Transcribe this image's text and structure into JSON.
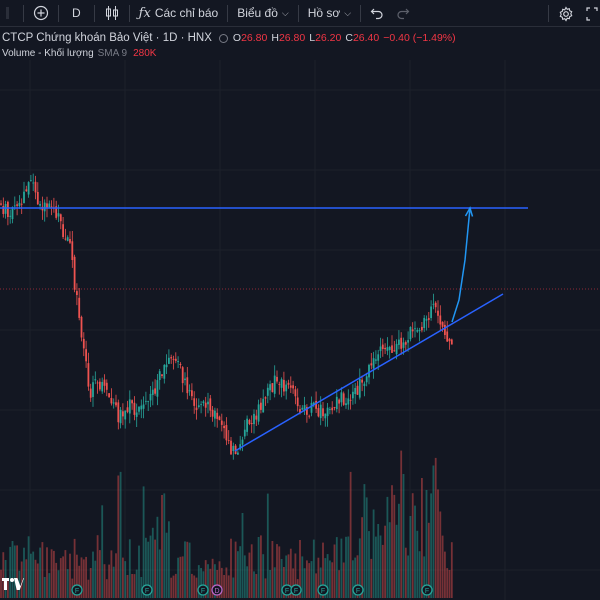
{
  "toolbar": {
    "interval": "D",
    "indicators_label": "Các chỉ báo",
    "chart_label": "Biểu đồ",
    "profile_label": "Hồ sơ"
  },
  "legend": {
    "title": "CTCP Chứng khoán Bảo Việt · 1D · HNX",
    "open_key": "O",
    "open": "26.80",
    "high_key": "H",
    "high": "26.80",
    "low_key": "L",
    "low": "26.20",
    "close_key": "C",
    "close": "26.40",
    "change": "−0.40 (−1.49%)",
    "volume_label": "Volume - Khối lượng",
    "volume_sma": "SMA 9",
    "volume_value": "280K"
  },
  "icons": {
    "add": "plus-circle-icon",
    "bars": "candles-icon",
    "indicators": "fx-icon",
    "undo": "undo-icon",
    "redo": "redo-icon",
    "settings": "gear-icon",
    "fullscreen": "fullscreen-icon",
    "logo": "tradingview-logo"
  },
  "colors": {
    "background": "#131722",
    "up": "#26a69a",
    "down": "#ef5350",
    "trendline": "#2962ff",
    "arrow": "#2196f3",
    "price_line": "#f23645",
    "event_marker": "#26a69a",
    "dividend_marker": "#ba68c8"
  },
  "chart_data": {
    "type": "candlestick",
    "price_series_shape": [
      [
        0,
        26.5
      ],
      [
        10,
        26.0
      ],
      [
        20,
        26.6
      ],
      [
        30,
        28.0
      ],
      [
        38,
        26.5
      ],
      [
        50,
        27.0
      ],
      [
        60,
        25.6
      ],
      [
        70,
        24.0
      ],
      [
        80,
        20.0
      ],
      [
        90,
        16.0
      ],
      [
        100,
        16.5
      ],
      [
        110,
        15.5
      ],
      [
        120,
        14.5
      ],
      [
        130,
        15.2
      ],
      [
        140,
        14.8
      ],
      [
        150,
        15.5
      ],
      [
        165,
        17.4
      ],
      [
        175,
        17.9
      ],
      [
        185,
        16.4
      ],
      [
        195,
        15.0
      ],
      [
        210,
        15.1
      ],
      [
        220,
        14.0
      ],
      [
        235,
        12.4
      ],
      [
        245,
        14.0
      ],
      [
        260,
        15.0
      ],
      [
        275,
        16.5
      ],
      [
        290,
        16.0
      ],
      [
        300,
        15.2
      ],
      [
        315,
        14.9
      ],
      [
        330,
        15.0
      ],
      [
        340,
        15.6
      ],
      [
        355,
        15.8
      ],
      [
        370,
        17.5
      ],
      [
        385,
        18.8
      ],
      [
        395,
        18.2
      ],
      [
        405,
        19.0
      ],
      [
        415,
        19.6
      ],
      [
        425,
        20.0
      ],
      [
        432,
        20.8
      ],
      [
        440,
        19.9
      ],
      [
        452,
        18.6
      ]
    ],
    "levels": {
      "last_price": 26.4,
      "resistance_horizontal": 26.4
    },
    "event_markers": [
      "F",
      "F",
      "F",
      "D",
      "F",
      "F",
      "F",
      "F",
      "F"
    ]
  }
}
